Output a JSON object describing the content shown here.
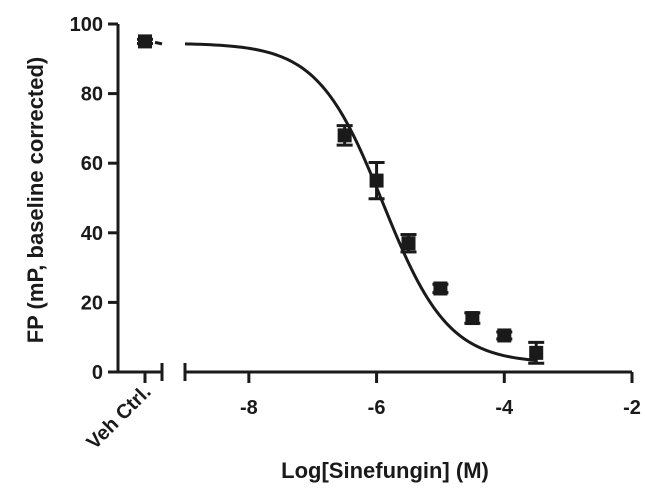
{
  "chart_data": {
    "type": "scatter",
    "xlabel": "Log[Sinefungin] (M)",
    "ylabel": "FP (mP, baseline corrected)",
    "xlim": [
      -9.0,
      -2.0
    ],
    "ylim": [
      0,
      100
    ],
    "x_ticks": [
      -8,
      -6,
      -4,
      -2
    ],
    "x_tick_labels": [
      "-8",
      "-6",
      "-4",
      "-2"
    ],
    "y_ticks": [
      0,
      20,
      40,
      60,
      80,
      100
    ],
    "y_tick_labels": [
      "0",
      "20",
      "40",
      "60",
      "80",
      "100"
    ],
    "control": {
      "label": "Veh Ctrl.",
      "y": 95,
      "err": 0.6
    },
    "points": [
      {
        "x": -6.5,
        "y": 68,
        "err": 2.8
      },
      {
        "x": -6.0,
        "y": 55,
        "err": 5.2
      },
      {
        "x": -5.5,
        "y": 37,
        "err": 2.5
      },
      {
        "x": -5.0,
        "y": 24,
        "err": 1.2
      },
      {
        "x": -4.5,
        "y": 15.5,
        "err": 1.5
      },
      {
        "x": -4.0,
        "y": 10.5,
        "err": 1.0
      },
      {
        "x": -3.5,
        "y": 5.5,
        "err": 3.0
      }
    ],
    "fit": {
      "top": 94.5,
      "bottom": 2.5,
      "log_ic50": -5.9,
      "hill": -0.85,
      "x_end": -3.5
    },
    "grid": false,
    "legend": "none"
  }
}
